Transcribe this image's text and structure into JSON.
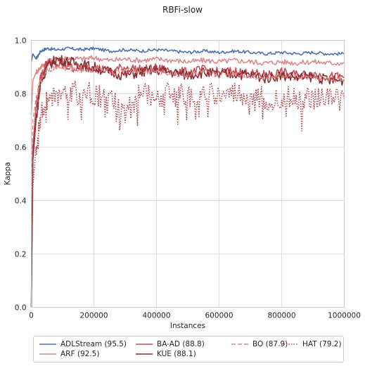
{
  "chart_data": {
    "type": "line",
    "title": "RBFi-slow",
    "xlabel": "Instances",
    "ylabel": "Kappa",
    "xlim": [
      0,
      1000000
    ],
    "ylim": [
      0,
      1.0
    ],
    "x_ticks": [
      0,
      200000,
      400000,
      600000,
      800000,
      1000000
    ],
    "x_tick_labels": [
      "0",
      "200000",
      "400000",
      "600000",
      "800000",
      "1000000"
    ],
    "y_ticks": [
      0,
      0.2,
      0.4,
      0.6,
      0.8,
      1.0
    ],
    "y_tick_labels": [
      "0.0",
      "0.2",
      "0.4",
      "0.6",
      "0.8",
      "1.0"
    ],
    "grid": true,
    "legend_position": "bottom-outside",
    "series": [
      {
        "name": "ADLStream (95.5)",
        "color": "#4c72b0",
        "style": "solid",
        "width": 1.6,
        "x": [
          0,
          5000,
          15000,
          30000,
          50000,
          80000,
          120000,
          160000,
          200000,
          250000,
          300000,
          350000,
          400000,
          450000,
          500000,
          550000,
          600000,
          650000,
          700000,
          750000,
          800000,
          850000,
          900000,
          950000,
          1000000
        ],
        "y": [
          0.92,
          0.95,
          0.93,
          0.96,
          0.97,
          0.965,
          0.97,
          0.965,
          0.97,
          0.96,
          0.965,
          0.96,
          0.965,
          0.96,
          0.955,
          0.96,
          0.955,
          0.96,
          0.955,
          0.95,
          0.955,
          0.95,
          0.955,
          0.95,
          0.95
        ]
      },
      {
        "name": "ARF (92.5)",
        "color": "#dd8a8a",
        "style": "solid",
        "width": 1.6,
        "x": [
          0,
          5000,
          15000,
          30000,
          50000,
          80000,
          120000,
          160000,
          200000,
          250000,
          300000,
          350000,
          400000,
          450000,
          500000,
          550000,
          600000,
          650000,
          700000,
          750000,
          800000,
          850000,
          900000,
          950000,
          1000000
        ],
        "y": [
          0.72,
          0.85,
          0.88,
          0.9,
          0.92,
          0.93,
          0.935,
          0.93,
          0.935,
          0.925,
          0.93,
          0.925,
          0.93,
          0.925,
          0.92,
          0.925,
          0.92,
          0.925,
          0.92,
          0.915,
          0.92,
          0.915,
          0.92,
          0.915,
          0.915
        ]
      },
      {
        "name": "BA-AD (88.8)",
        "color": "#c44e52",
        "style": "solid",
        "width": 1.6,
        "x": [
          0,
          5000,
          15000,
          30000,
          50000,
          80000,
          120000,
          160000,
          200000,
          250000,
          300000,
          350000,
          400000,
          450000,
          500000,
          550000,
          600000,
          650000,
          700000,
          750000,
          800000,
          850000,
          900000,
          950000,
          1000000
        ],
        "y": [
          0.0,
          0.6,
          0.75,
          0.86,
          0.92,
          0.91,
          0.9,
          0.895,
          0.9,
          0.885,
          0.9,
          0.89,
          0.895,
          0.885,
          0.88,
          0.89,
          0.88,
          0.885,
          0.875,
          0.87,
          0.88,
          0.87,
          0.875,
          0.865,
          0.86
        ]
      },
      {
        "name": "KUE (88.1)",
        "color": "#8c2d33",
        "style": "solid",
        "width": 1.6,
        "x": [
          0,
          5000,
          15000,
          30000,
          50000,
          80000,
          120000,
          160000,
          200000,
          250000,
          300000,
          350000,
          400000,
          450000,
          500000,
          550000,
          600000,
          650000,
          700000,
          750000,
          800000,
          850000,
          900000,
          950000,
          1000000
        ],
        "y": [
          0.0,
          0.55,
          0.7,
          0.84,
          0.9,
          0.93,
          0.92,
          0.91,
          0.9,
          0.88,
          0.87,
          0.88,
          0.89,
          0.88,
          0.87,
          0.88,
          0.87,
          0.875,
          0.87,
          0.86,
          0.87,
          0.86,
          0.865,
          0.85,
          0.85
        ]
      },
      {
        "name": "BO (87.9)",
        "color": "#d98888",
        "style": "dashed",
        "width": 1.4,
        "x": [
          0,
          5000,
          15000,
          30000,
          50000,
          80000,
          120000,
          160000,
          200000,
          250000,
          300000,
          350000,
          400000,
          450000,
          500000,
          550000,
          600000,
          650000,
          700000,
          750000,
          800000,
          850000,
          900000,
          950000,
          1000000
        ],
        "y": [
          0.5,
          0.7,
          0.78,
          0.85,
          0.89,
          0.9,
          0.895,
          0.89,
          0.895,
          0.88,
          0.89,
          0.88,
          0.885,
          0.875,
          0.87,
          0.88,
          0.87,
          0.875,
          0.865,
          0.86,
          0.87,
          0.86,
          0.865,
          0.855,
          0.85
        ]
      },
      {
        "name": "HAT (79.2)",
        "color": "#b5474b",
        "style": "dotted",
        "width": 1.6,
        "x": [
          0,
          5000,
          15000,
          30000,
          50000,
          80000,
          120000,
          160000,
          200000,
          250000,
          300000,
          350000,
          400000,
          450000,
          500000,
          550000,
          600000,
          650000,
          700000,
          750000,
          800000,
          850000,
          900000,
          950000,
          1000000
        ],
        "y": [
          0.2,
          0.45,
          0.6,
          0.72,
          0.78,
          0.8,
          0.81,
          0.8,
          0.8,
          0.79,
          0.72,
          0.8,
          0.79,
          0.8,
          0.79,
          0.8,
          0.79,
          0.8,
          0.79,
          0.78,
          0.79,
          0.78,
          0.79,
          0.78,
          0.78
        ]
      }
    ]
  }
}
